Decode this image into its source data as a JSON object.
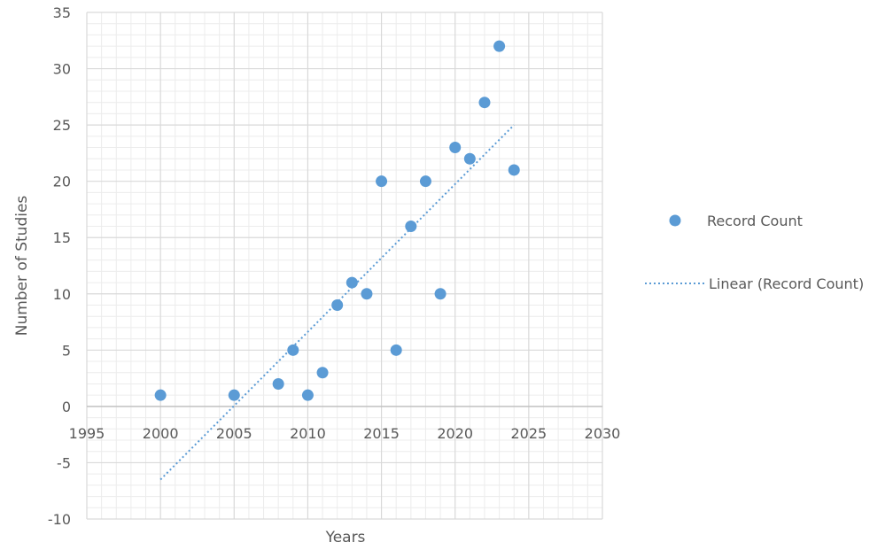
{
  "chart_data": {
    "type": "scatter",
    "title": "",
    "xlabel": "Years",
    "ylabel": "Number of Studies",
    "xlim": [
      1995,
      2030
    ],
    "ylim": [
      -10,
      35
    ],
    "x_ticks": [
      1995,
      2000,
      2005,
      2010,
      2015,
      2020,
      2025,
      2030
    ],
    "y_ticks": [
      -10,
      -5,
      0,
      5,
      10,
      15,
      20,
      25,
      30,
      35
    ],
    "grid": "major and minor",
    "legend_position": "right",
    "colors": {
      "points": "#5b9bd5",
      "trendline": "#5b9bd5",
      "major_grid": "#d9d9d9",
      "minor_grid": "#ececec",
      "text": "#595959"
    },
    "series": [
      {
        "name": "Record Count",
        "x": [
          2000,
          2005,
          2008,
          2009,
          2010,
          2011,
          2012,
          2013,
          2014,
          2015,
          2016,
          2017,
          2018,
          2019,
          2020,
          2021,
          2022,
          2023,
          2024
        ],
        "y": [
          1,
          1,
          2,
          5,
          1,
          3,
          9,
          11,
          10,
          20,
          5,
          16,
          20,
          10,
          23,
          22,
          27,
          32,
          21
        ]
      }
    ],
    "trendline": {
      "name": "Linear (Record Count)",
      "type": "linear",
      "from": [
        2000,
        -6.5
      ],
      "to": [
        2024,
        25
      ]
    }
  }
}
